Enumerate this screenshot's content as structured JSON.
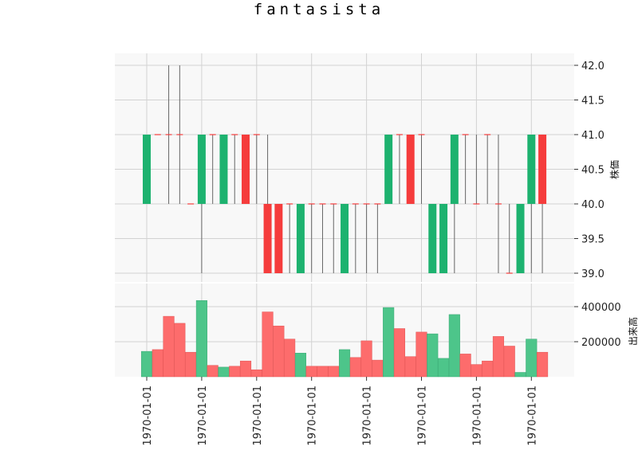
{
  "chart_data": {
    "title": "fantasista",
    "type": "candlestick",
    "x_tick_labels": [
      "1970-01-01",
      "1970-01-01",
      "1970-01-01",
      "1970-01-01",
      "1970-01-01",
      "1970-01-01",
      "1970-01-01",
      "1970-01-01"
    ],
    "price_panel": {
      "ylabel": "株価",
      "ylim": [
        38.9,
        42.15
      ],
      "yticks": [
        "39.0",
        "39.5",
        "40.0",
        "40.5",
        "41.0",
        "41.5",
        "42.0"
      ],
      "grid": true,
      "ohlc": [
        [
          40,
          41,
          40,
          41
        ],
        [
          41,
          41,
          41,
          41
        ],
        [
          41,
          42,
          40,
          41
        ],
        [
          41,
          42,
          40,
          41
        ],
        [
          40,
          40,
          40,
          40
        ],
        [
          40,
          41,
          39,
          41
        ],
        [
          41,
          41,
          40,
          41
        ],
        [
          40,
          41,
          40,
          41
        ],
        [
          41,
          41,
          40,
          41
        ],
        [
          41,
          41,
          40,
          40
        ],
        [
          41,
          41,
          40,
          41
        ],
        [
          40,
          41,
          39,
          39
        ],
        [
          40,
          40,
          39,
          39
        ],
        [
          40,
          40,
          39,
          40
        ],
        [
          39,
          40,
          39,
          40
        ],
        [
          40,
          40,
          39,
          40
        ],
        [
          40,
          40,
          39,
          40
        ],
        [
          40,
          40,
          39,
          40
        ],
        [
          39,
          40,
          39,
          40
        ],
        [
          40,
          40,
          39,
          40
        ],
        [
          40,
          40,
          39,
          40
        ],
        [
          40,
          40,
          39,
          40
        ],
        [
          40,
          41,
          40,
          41
        ],
        [
          41,
          41,
          40,
          41
        ],
        [
          41,
          41,
          40,
          40
        ],
        [
          41,
          41,
          40,
          41
        ],
        [
          39,
          40,
          39,
          40
        ],
        [
          39,
          40,
          39,
          40
        ],
        [
          40,
          41,
          39,
          41
        ],
        [
          41,
          41,
          40,
          41
        ],
        [
          40,
          41,
          40,
          40
        ],
        [
          41,
          41,
          40,
          41
        ],
        [
          40,
          41,
          39,
          40
        ],
        [
          39,
          40,
          39,
          39
        ],
        [
          39,
          40,
          39,
          40
        ],
        [
          40,
          41,
          39,
          41
        ],
        [
          41,
          41,
          39,
          40
        ]
      ]
    },
    "volume_panel": {
      "ylabel": "出来高",
      "yticks": [
        "200000",
        "400000"
      ],
      "ylim": [
        0,
        560000
      ],
      "grid": true,
      "values": [
        145000,
        155000,
        345000,
        305000,
        140000,
        435000,
        65000,
        55000,
        60000,
        90000,
        40000,
        370000,
        290000,
        215000,
        135000,
        60000,
        60000,
        60000,
        155000,
        110000,
        205000,
        95000,
        395000,
        275000,
        115000,
        255000,
        245000,
        105000,
        355000,
        130000,
        70000,
        90000,
        230000,
        175000,
        25000,
        215000,
        140000
      ]
    },
    "colors": {
      "up": "#1db26f",
      "down": "#f53c3c",
      "volume_up": "#4dc58a",
      "volume_down": "#fd6c6c",
      "wick": "#666666",
      "panel_bg": "#f8f8f8",
      "grid": "#d2d2d2"
    }
  }
}
